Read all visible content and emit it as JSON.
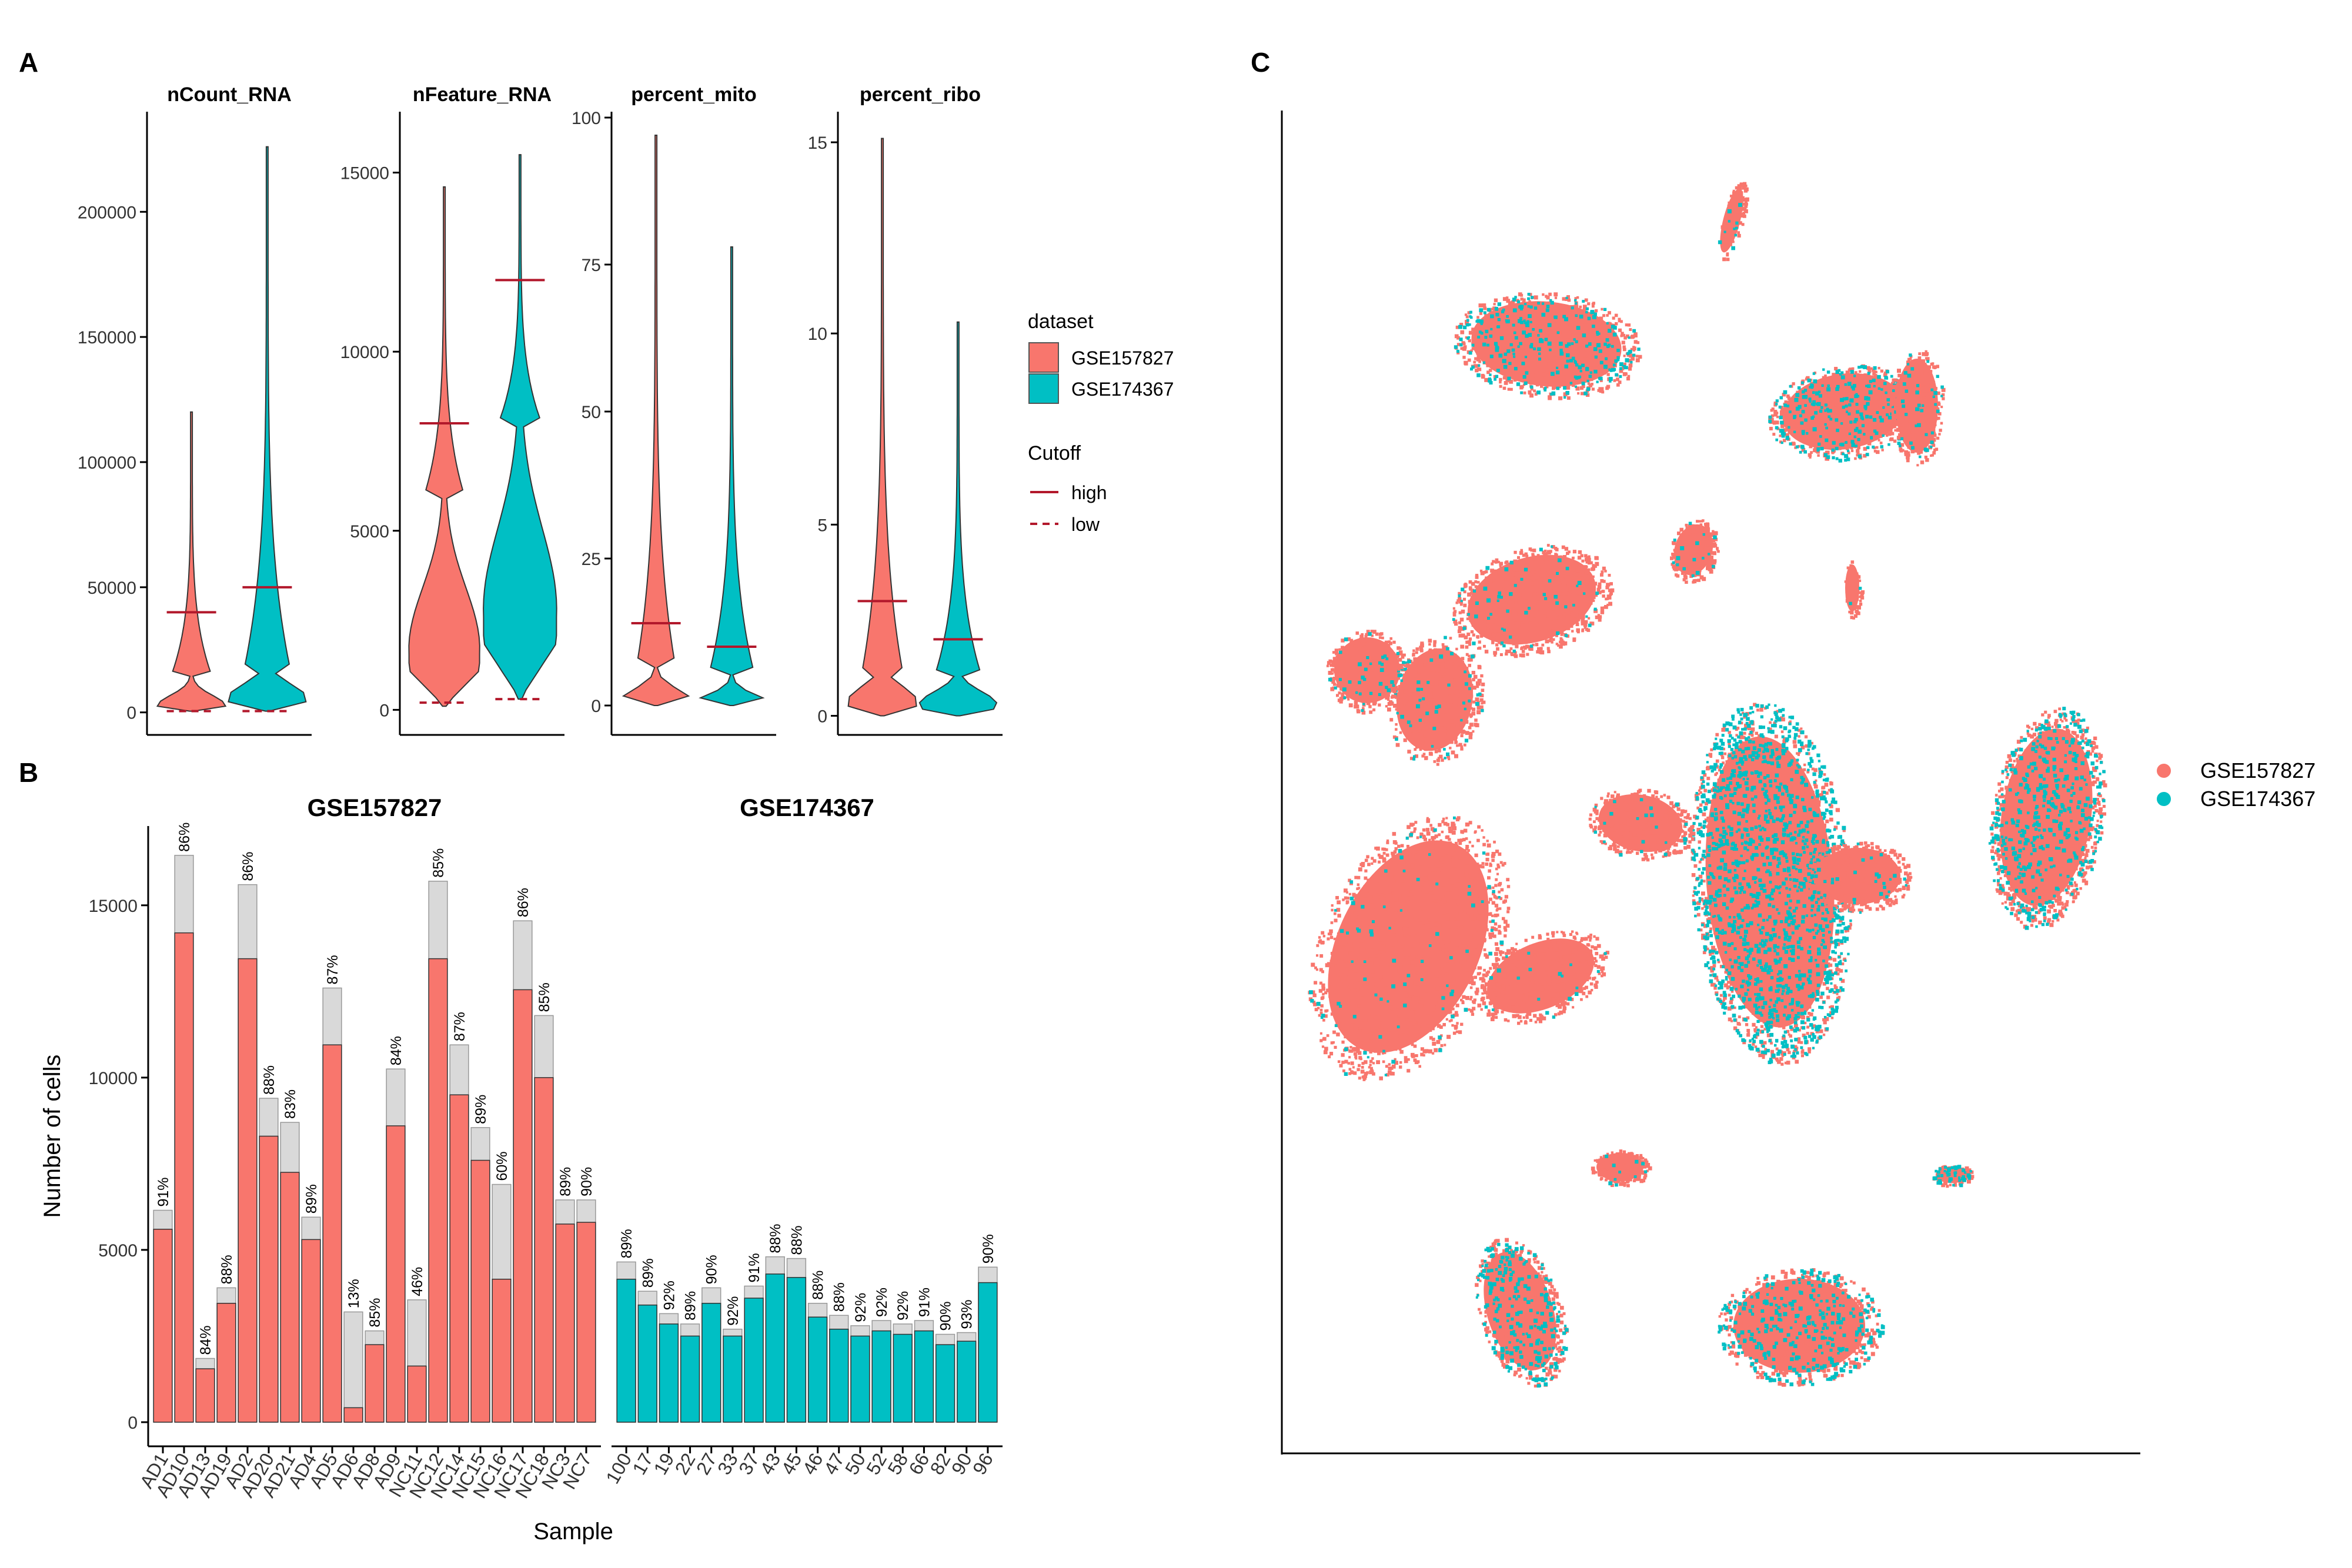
{
  "panel_labels": {
    "a": "A",
    "b": "B",
    "c": "C"
  },
  "colors": {
    "gse157827": "#F8766D",
    "gse174367": "#00BFC4",
    "cutoff": "#B2182B",
    "total_bar": "#D9D9D9",
    "axis": "#000000"
  },
  "legend_a": {
    "dataset_title": "dataset",
    "datasets": [
      "GSE157827",
      "GSE174367"
    ],
    "cutoff_title": "Cutoff",
    "cutoffs": [
      "high",
      "low"
    ]
  },
  "legend_c": {
    "datasets": [
      "GSE157827",
      "GSE174367"
    ]
  },
  "chart_data": [
    {
      "type": "violin",
      "title": "nCount_RNA",
      "ylim": [
        -9000,
        240000
      ],
      "yticks": [
        0,
        50000,
        100000,
        150000,
        200000
      ],
      "ytick_labels": [
        "0",
        "50000",
        "100000",
        "150000",
        "200000"
      ],
      "groups": [
        {
          "dataset": "GSE157827",
          "max": 120000,
          "min": 500,
          "median": 2500,
          "cutoff_high": 40000,
          "cutoff_low": 500
        },
        {
          "dataset": "GSE174367",
          "max": 226000,
          "min": 500,
          "median": 6000,
          "cutoff_high": 50000,
          "cutoff_low": 500
        }
      ]
    },
    {
      "type": "violin",
      "title": "nFeature_RNA",
      "ylim": [
        -700,
        16700
      ],
      "yticks": [
        0,
        5000,
        10000,
        15000
      ],
      "ytick_labels": [
        "0",
        "5000",
        "10000",
        "15000"
      ],
      "groups": [
        {
          "dataset": "GSE157827",
          "max": 14600,
          "min": 100,
          "median": 1700,
          "cutoff_high": 8000,
          "cutoff_low": 200
        },
        {
          "dataset": "GSE174367",
          "max": 15500,
          "min": 300,
          "median": 2800,
          "cutoff_high": 12000,
          "cutoff_low": 300
        }
      ]
    },
    {
      "type": "violin",
      "title": "percent_mito",
      "ylim": [
        -5,
        101
      ],
      "yticks": [
        0,
        25,
        50,
        75,
        100
      ],
      "ytick_labels": [
        "0",
        "25",
        "50",
        "75",
        "100"
      ],
      "groups": [
        {
          "dataset": "GSE157827",
          "max": 97,
          "min": 0,
          "median": 1,
          "cutoff_high": 14
        },
        {
          "dataset": "GSE174367",
          "max": 78,
          "min": 0,
          "median": 0.2,
          "cutoff_high": 10
        }
      ]
    },
    {
      "type": "violin",
      "title": "percent_ribo",
      "ylim": [
        -0.5,
        15.8
      ],
      "yticks": [
        0,
        5,
        10,
        15
      ],
      "ytick_labels": [
        "0",
        "5",
        "10",
        "15"
      ],
      "groups": [
        {
          "dataset": "GSE157827",
          "max": 15.1,
          "min": 0,
          "median": 0.4,
          "cutoff_high": 3
        },
        {
          "dataset": "GSE174367",
          "max": 10.3,
          "min": 0,
          "median": 0.3,
          "cutoff_high": 2
        }
      ]
    },
    {
      "type": "bar",
      "title": "GSE157827",
      "xlabel": "Sample",
      "ylabel": "Number of cells",
      "ylim": [
        -700,
        17300
      ],
      "yticks": [
        0,
        5000,
        10000,
        15000
      ],
      "ytick_labels": [
        "0",
        "5000",
        "10000",
        "15000"
      ],
      "categories": [
        "AD1",
        "AD10",
        "AD13",
        "AD19",
        "AD2",
        "AD20",
        "AD21",
        "AD4",
        "AD5",
        "AD6",
        "AD8",
        "AD9",
        "NC11",
        "NC12",
        "NC14",
        "NC15",
        "NC16",
        "NC17",
        "NC18",
        "NC3",
        "NC7"
      ],
      "series": [
        {
          "name": "total",
          "values": [
            6150,
            16450,
            1850,
            3900,
            15600,
            9400,
            8700,
            5950,
            12600,
            3200,
            2650,
            10250,
            3550,
            15700,
            10950,
            8550,
            6900,
            14550,
            11800,
            6450,
            6450
          ]
        },
        {
          "name": "retained",
          "values": [
            5600,
            14200,
            1550,
            3450,
            13450,
            8300,
            7250,
            5300,
            10950,
            420,
            2250,
            8600,
            1630,
            13450,
            9500,
            7600,
            4150,
            12550,
            10000,
            5750,
            5800
          ]
        }
      ],
      "labels": [
        "91%",
        "86%",
        "84%",
        "88%",
        "86%",
        "88%",
        "83%",
        "89%",
        "87%",
        "13%",
        "85%",
        "84%",
        "46%",
        "85%",
        "87%",
        "89%",
        "60%",
        "86%",
        "85%",
        "89%",
        "90%"
      ]
    },
    {
      "type": "bar",
      "title": "GSE174367",
      "categories": [
        "100",
        "17",
        "19",
        "22",
        "27",
        "33",
        "37",
        "43",
        "45",
        "46",
        "47",
        "50",
        "52",
        "58",
        "66",
        "82",
        "90",
        "96"
      ],
      "series": [
        {
          "name": "total",
          "values": [
            4650,
            3800,
            3150,
            2850,
            3900,
            2700,
            3950,
            4800,
            4750,
            3450,
            3100,
            2800,
            2950,
            2850,
            2950,
            2550,
            2600,
            4500
          ]
        },
        {
          "name": "retained",
          "values": [
            4150,
            3400,
            2850,
            2500,
            3450,
            2500,
            3600,
            4300,
            4200,
            3050,
            2700,
            2500,
            2650,
            2550,
            2650,
            2250,
            2350,
            4050
          ]
        }
      ],
      "labels": [
        "89%",
        "89%",
        "92%",
        "89%",
        "90%",
        "92%",
        "91%",
        "88%",
        "88%",
        "88%",
        "88%",
        "92%",
        "92%",
        "92%",
        "91%",
        "90%",
        "93%",
        "90%"
      ]
    },
    {
      "type": "scatter",
      "title": "",
      "description_series": [
        "GSE157827",
        "GSE174367"
      ],
      "series": [
        {
          "name": "GSE157827",
          "values": []
        },
        {
          "name": "GSE174367",
          "values": []
        }
      ]
    }
  ]
}
